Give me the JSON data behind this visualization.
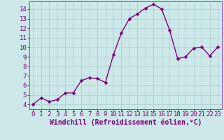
{
  "x": [
    0,
    1,
    2,
    3,
    4,
    5,
    6,
    7,
    8,
    9,
    10,
    11,
    12,
    13,
    14,
    15,
    16,
    17,
    18,
    19,
    20,
    21,
    22,
    23
  ],
  "y": [
    4.0,
    4.7,
    4.3,
    4.5,
    5.2,
    5.2,
    6.5,
    6.8,
    6.7,
    6.3,
    9.2,
    11.5,
    13.0,
    13.5,
    14.1,
    14.5,
    14.0,
    11.8,
    8.8,
    9.0,
    9.9,
    10.0,
    9.1,
    10.0
  ],
  "line_color": "#800080",
  "marker": "D",
  "marker_size": 2.5,
  "bg_color": "#cce8e8",
  "grid_color": "#aacccc",
  "xlabel": "Windchill (Refroidissement éolien,°C)",
  "xlabel_color": "#800080",
  "xlabel_fontsize": 7,
  "tick_color": "#800080",
  "tick_fontsize": 6.5,
  "ylim": [
    3.5,
    14.8
  ],
  "xlim": [
    -0.5,
    23.5
  ],
  "yticks": [
    4,
    5,
    6,
    7,
    8,
    9,
    10,
    11,
    12,
    13,
    14
  ],
  "xticks": [
    0,
    1,
    2,
    3,
    4,
    5,
    6,
    7,
    8,
    9,
    10,
    11,
    12,
    13,
    14,
    15,
    16,
    17,
    18,
    19,
    20,
    21,
    22,
    23
  ]
}
